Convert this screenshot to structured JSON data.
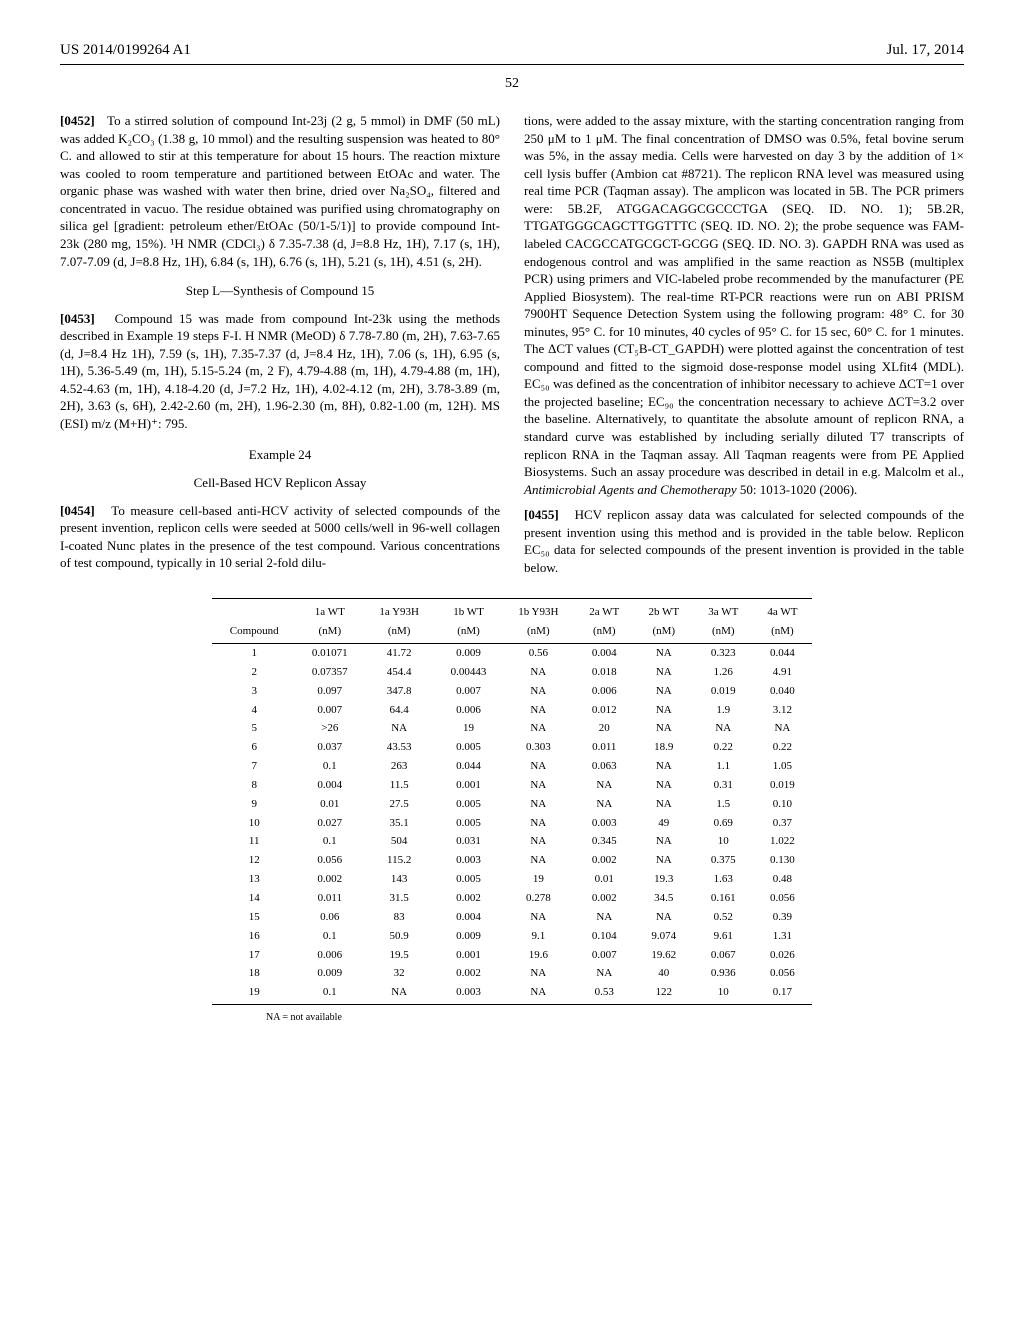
{
  "header": {
    "left": "US 2014/0199264 A1",
    "right": "Jul. 17, 2014",
    "page_number": "52"
  },
  "left_column": {
    "p0452": {
      "num": "[0452]",
      "text": "To a stirred solution of compound Int-23j (2 g, 5 mmol) in DMF (50 mL) was added K₂CO₃ (1.38 g, 10 mmol) and the resulting suspension was heated to 80° C. and allowed to stir at this temperature for about 15 hours. The reaction mixture was cooled to room temperature and partitioned between EtOAc and water. The organic phase was washed with water then brine, dried over Na₂SO₄, filtered and concentrated in vacuo. The residue obtained was purified using chromatography on silica gel [gradient: petroleum ether/EtOAc (50/1-5/1)] to provide compound Int-23k (280 mg, 15%). ¹H NMR (CDCl₃) δ 7.35-7.38 (d, J=8.8 Hz, 1H), 7.17 (s, 1H), 7.07-7.09 (d, J=8.8 Hz, 1H), 6.84 (s, 1H), 6.76 (s, 1H), 5.21 (s, 1H), 4.51 (s, 2H)."
    },
    "step_l_title": "Step L—Synthesis of Compound 15",
    "p0453": {
      "num": "[0453]",
      "text": "Compound 15 was made from compound Int-23k using the methods described in Example 19 steps F-I. H NMR (MeOD) δ 7.78-7.80 (m, 2H), 7.63-7.65 (d, J=8.4 Hz 1H), 7.59 (s, 1H), 7.35-7.37 (d, J=8.4 Hz, 1H), 7.06 (s, 1H), 6.95 (s, 1H), 5.36-5.49 (m, 1H), 5.15-5.24 (m, 2 F), 4.79-4.88 (m, 1H), 4.79-4.88 (m, 1H), 4.52-4.63 (m, 1H), 4.18-4.20 (d, J=7.2 Hz, 1H), 4.02-4.12 (m, 2H), 3.78-3.89 (m, 2H), 3.63 (s, 6H), 2.42-2.60 (m, 2H), 1.96-2.30 (m, 8H), 0.82-1.00 (m, 12H). MS (ESI) m/z (M+H)⁺: 795."
    },
    "example_title": "Example 24",
    "assay_title": "Cell-Based HCV Replicon Assay",
    "p0454": {
      "num": "[0454]",
      "text": "To measure cell-based anti-HCV activity of selected compounds of the present invention, replicon cells were seeded at 5000 cells/well in 96-well collagen I-coated Nunc plates in the presence of the test compound. Various concentrations of test compound, typically in 10 serial 2-fold dilu-"
    }
  },
  "right_column": {
    "p_cont": "tions, were added to the assay mixture, with the starting concentration ranging from 250 μM to 1 μM. The final concentration of DMSO was 0.5%, fetal bovine serum was 5%, in the assay media. Cells were harvested on day 3 by the addition of 1× cell lysis buffer (Ambion cat #8721). The replicon RNA level was measured using real time PCR (Taqman assay). The amplicon was located in 5B. The PCR primers were: 5B.2F, ATGGACAGGCGCCCTGA (SEQ. ID. NO. 1); 5B.2R, TTGATGGGCAGCTTGGTTTC (SEQ. ID. NO. 2); the probe sequence was FAM-labeled CACGCCATGCGCT-GCGG (SEQ. ID. NO. 3). GAPDH RNA was used as endogenous control and was amplified in the same reaction as NS5B (multiplex PCR) using primers and VIC-labeled probe recommended by the manufacturer (PE Applied Biosystem). The real-time RT-PCR reactions were run on ABI PRISM 7900HT Sequence Detection System using the following program: 48° C. for 30 minutes, 95° C. for 10 minutes, 40 cycles of 95° C. for 15 sec, 60° C. for 1 minutes. The ΔCT values (CT₅B-CT_GAPDH) were plotted against the concentration of test compound and fitted to the sigmoid dose-response model using XLfit4 (MDL). EC₅₀ was defined as the concentration of inhibitor necessary to achieve ΔCT=1 over the projected baseline; EC₉₀ the concentration necessary to achieve ΔCT=3.2 over the baseline. Alternatively, to quantitate the absolute amount of replicon RNA, a standard curve was established by including serially diluted T7 transcripts of replicon RNA in the Taqman assay. All Taqman reagents were from PE Applied Biosystems. Such an assay procedure was described in detail in e.g. Malcolm et al., ",
    "p_cont_italic": "Antimicrobial Agents and Chemotherapy",
    "p_cont_tail": " 50: 1013-1020 (2006).",
    "p0455": {
      "num": "[0455]",
      "text": "HCV replicon assay data was calculated for selected compounds of the present invention using this method and is provided in the table below. Replicon EC₅₀ data for selected compounds of the present invention is provided in the table below."
    }
  },
  "table": {
    "columns_line1": [
      "",
      "1a WT",
      "1a Y93H",
      "1b WT",
      "1b Y93H",
      "2a WT",
      "2b WT",
      "3a WT",
      "4a WT"
    ],
    "columns_line2": [
      "Compound",
      "(nM)",
      "(nM)",
      "(nM)",
      "(nM)",
      "(nM)",
      "(nM)",
      "(nM)",
      "(nM)"
    ],
    "rows": [
      [
        "1",
        "0.01071",
        "41.72",
        "0.009",
        "0.56",
        "0.004",
        "NA",
        "0.323",
        "0.044"
      ],
      [
        "2",
        "0.07357",
        "454.4",
        "0.00443",
        "NA",
        "0.018",
        "NA",
        "1.26",
        "4.91"
      ],
      [
        "3",
        "0.097",
        "347.8",
        "0.007",
        "NA",
        "0.006",
        "NA",
        "0.019",
        "0.040"
      ],
      [
        "4",
        "0.007",
        "64.4",
        "0.006",
        "NA",
        "0.012",
        "NA",
        "1.9",
        "3.12"
      ],
      [
        "5",
        ">26",
        "NA",
        "19",
        "NA",
        "20",
        "NA",
        "NA",
        "NA"
      ],
      [
        "6",
        "0.037",
        "43.53",
        "0.005",
        "0.303",
        "0.011",
        "18.9",
        "0.22",
        "0.22"
      ],
      [
        "7",
        "0.1",
        "263",
        "0.044",
        "NA",
        "0.063",
        "NA",
        "1.1",
        "1.05"
      ],
      [
        "8",
        "0.004",
        "11.5",
        "0.001",
        "NA",
        "NA",
        "NA",
        "0.31",
        "0.019"
      ],
      [
        "9",
        "0.01",
        "27.5",
        "0.005",
        "NA",
        "NA",
        "NA",
        "1.5",
        "0.10"
      ],
      [
        "10",
        "0.027",
        "35.1",
        "0.005",
        "NA",
        "0.003",
        "49",
        "0.69",
        "0.37"
      ],
      [
        "11",
        "0.1",
        "504",
        "0.031",
        "NA",
        "0.345",
        "NA",
        "10",
        "1.022"
      ],
      [
        "12",
        "0.056",
        "115.2",
        "0.003",
        "NA",
        "0.002",
        "NA",
        "0.375",
        "0.130"
      ],
      [
        "13",
        "0.002",
        "143",
        "0.005",
        "19",
        "0.01",
        "19.3",
        "1.63",
        "0.48"
      ],
      [
        "14",
        "0.011",
        "31.5",
        "0.002",
        "0.278",
        "0.002",
        "34.5",
        "0.161",
        "0.056"
      ],
      [
        "15",
        "0.06",
        "83",
        "0.004",
        "NA",
        "NA",
        "NA",
        "0.52",
        "0.39"
      ],
      [
        "16",
        "0.1",
        "50.9",
        "0.009",
        "9.1",
        "0.104",
        "9.074",
        "9.61",
        "1.31"
      ],
      [
        "17",
        "0.006",
        "19.5",
        "0.001",
        "19.6",
        "0.007",
        "19.62",
        "0.067",
        "0.026"
      ],
      [
        "18",
        "0.009",
        "32",
        "0.002",
        "NA",
        "NA",
        "40",
        "0.936",
        "0.056"
      ],
      [
        "19",
        "0.1",
        "NA",
        "0.003",
        "NA",
        "0.53",
        "122",
        "10",
        "0.17"
      ]
    ],
    "note": "NA = not available"
  }
}
